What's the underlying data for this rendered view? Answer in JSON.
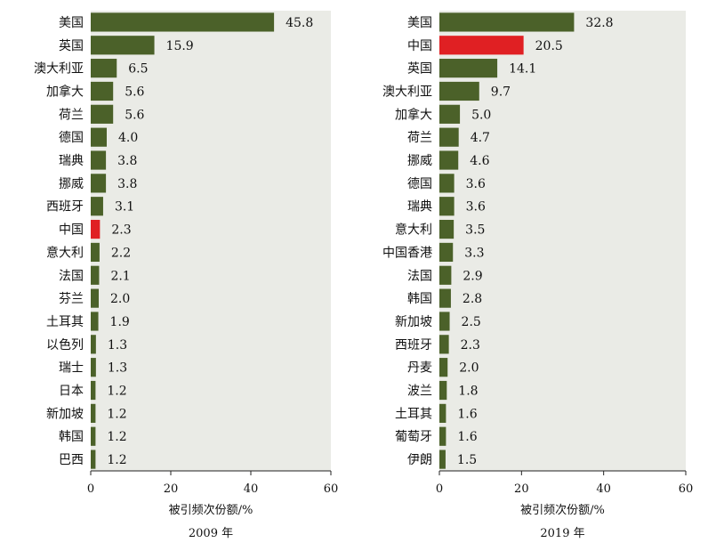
{
  "chart_data": [
    {
      "type": "bar",
      "orientation": "horizontal",
      "title": "2009 年",
      "xlabel": "被引频次份额/%",
      "xlim": [
        0,
        60
      ],
      "xticks": [
        "0",
        "20",
        "40",
        "60"
      ],
      "grid": false,
      "background": "#eaebe6",
      "categories": [
        "美国",
        "英国",
        "澳大利亚",
        "加拿大",
        "荷兰",
        "德国",
        "瑞典",
        "挪威",
        "西班牙",
        "中国",
        "意大利",
        "法国",
        "芬兰",
        "土耳其",
        "以色列",
        "瑞士",
        "日本",
        "新加坡",
        "韩国",
        "巴西"
      ],
      "values": [
        45.8,
        15.9,
        6.5,
        5.6,
        5.6,
        4.0,
        3.8,
        3.8,
        3.1,
        2.3,
        2.2,
        2.1,
        2.0,
        1.9,
        1.3,
        1.3,
        1.2,
        1.2,
        1.2,
        1.2
      ],
      "value_labels": [
        "45.8",
        "15.9",
        "6.5",
        "5.6",
        "5.6",
        "4.0",
        "3.8",
        "3.8",
        "3.1",
        "2.3",
        "2.2",
        "2.1",
        "2.0",
        "1.9",
        "1.3",
        "1.3",
        "1.2",
        "1.2",
        "1.2",
        "1.2"
      ],
      "highlight": "中国"
    },
    {
      "type": "bar",
      "orientation": "horizontal",
      "title": "2019 年",
      "xlabel": "被引频次份额/%",
      "xlim": [
        0,
        60
      ],
      "xticks": [
        "0",
        "20",
        "40",
        "60"
      ],
      "grid": false,
      "background": "#eaebe6",
      "categories": [
        "美国",
        "中国",
        "英国",
        "澳大利亚",
        "加拿大",
        "荷兰",
        "挪威",
        "德国",
        "瑞典",
        "意大利",
        "中国香港",
        "法国",
        "韩国",
        "新加坡",
        "西班牙",
        "丹麦",
        "波兰",
        "土耳其",
        "葡萄牙",
        "伊朗"
      ],
      "values": [
        32.8,
        20.5,
        14.1,
        9.7,
        5.0,
        4.7,
        4.6,
        3.6,
        3.6,
        3.5,
        3.3,
        2.9,
        2.8,
        2.5,
        2.3,
        2.0,
        1.8,
        1.6,
        1.6,
        1.5
      ],
      "value_labels": [
        "32.8",
        "20.5",
        "14.1",
        "9.7",
        "5.0",
        "4.7",
        "4.6",
        "3.6",
        "3.6",
        "3.5",
        "3.3",
        "2.9",
        "2.8",
        "2.5",
        "2.3",
        "2.0",
        "1.8",
        "1.6",
        "1.6",
        "1.5"
      ],
      "highlight": "中国"
    }
  ],
  "colors": {
    "bar": "#4b6129",
    "highlight": "#e02023",
    "background": "#eaebe6"
  }
}
